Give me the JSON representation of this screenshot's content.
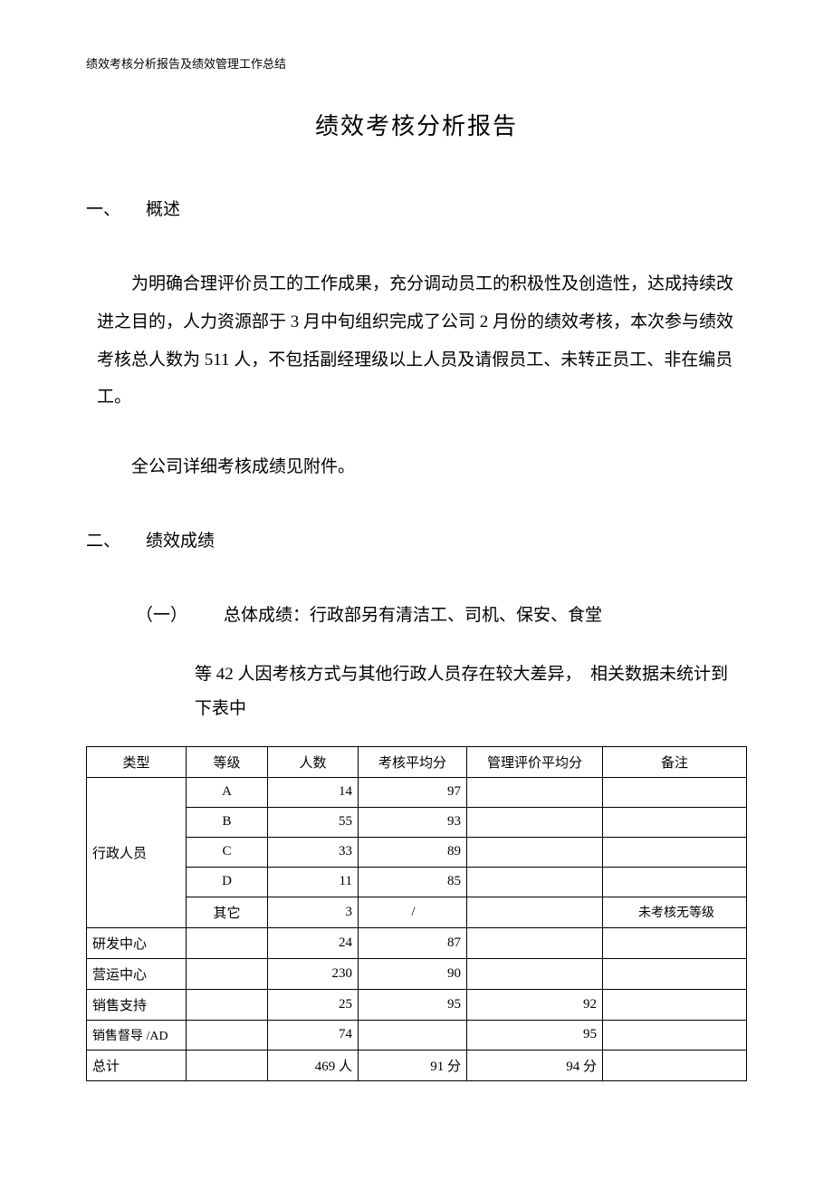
{
  "header_note": "绩效考核分析报告及绩效管理工作总结",
  "title": "绩效考核分析报告",
  "section1": {
    "num": "一、",
    "label": "概述"
  },
  "paragraph1": "为明确合理评价员工的工作成果，充分调动员工的积极性及创造性，达成持续改进之目的，人力资源部于 3 月中旬组织完成了公司 2 月份的绩效考核，本次参与绩效考核总人数为 511 人，不包括副经理级以上人员及请假员工、未转正员工、非在编员工。",
  "paragraph2": "全公司详细考核成绩见附件。",
  "section2": {
    "num": "二、",
    "label": "绩效成绩"
  },
  "subitem1": {
    "num": "（一）",
    "line1": "总体成绩：行政部另有清洁工、司机、保安、食堂",
    "line2": "等 42 人因考核方式与其他行政人员存在较大差异，　相关数据未统计到下表中"
  },
  "table": {
    "headers": {
      "type": "类型",
      "grade": "等级",
      "count": "人数",
      "score": "考核平均分",
      "mgmt": "管理评价平均分",
      "note": "备注"
    },
    "admin_label": "行政人员",
    "admin_rows": [
      {
        "grade": "A",
        "count": "14",
        "score": "97",
        "mgmt": "",
        "note": ""
      },
      {
        "grade": "B",
        "count": "55",
        "score": "93",
        "mgmt": "",
        "note": ""
      },
      {
        "grade": "C",
        "count": "33",
        "score": "89",
        "mgmt": "",
        "note": ""
      },
      {
        "grade": "D",
        "count": "11",
        "score": "85",
        "mgmt": "",
        "note": ""
      },
      {
        "grade": "其它",
        "count": "3",
        "score": "/",
        "mgmt": "",
        "note": "未考核无等级"
      }
    ],
    "other_rows": [
      {
        "type": "研发中心",
        "grade": "",
        "count": "24",
        "score": "87",
        "mgmt": "",
        "note": ""
      },
      {
        "type": "营运中心",
        "grade": "",
        "count": "230",
        "score": "90",
        "mgmt": "",
        "note": ""
      },
      {
        "type": "销售支持",
        "grade": "",
        "count": "25",
        "score": "95",
        "mgmt": "92",
        "note": ""
      },
      {
        "type": "销售督导 /AD",
        "grade": "",
        "count": "74",
        "score": "",
        "mgmt": "95",
        "note": ""
      }
    ],
    "summary": {
      "type": "总计",
      "grade": "",
      "count": "469 人",
      "score": "91 分",
      "mgmt": "94 分",
      "note": ""
    }
  },
  "styling": {
    "page_bg": "#ffffff",
    "text_color": "#000000",
    "border_color": "#000000",
    "title_fontsize": 26,
    "body_fontsize": 19,
    "table_fontsize": 15,
    "header_fontsize": 13,
    "font_family": "SimSun"
  }
}
